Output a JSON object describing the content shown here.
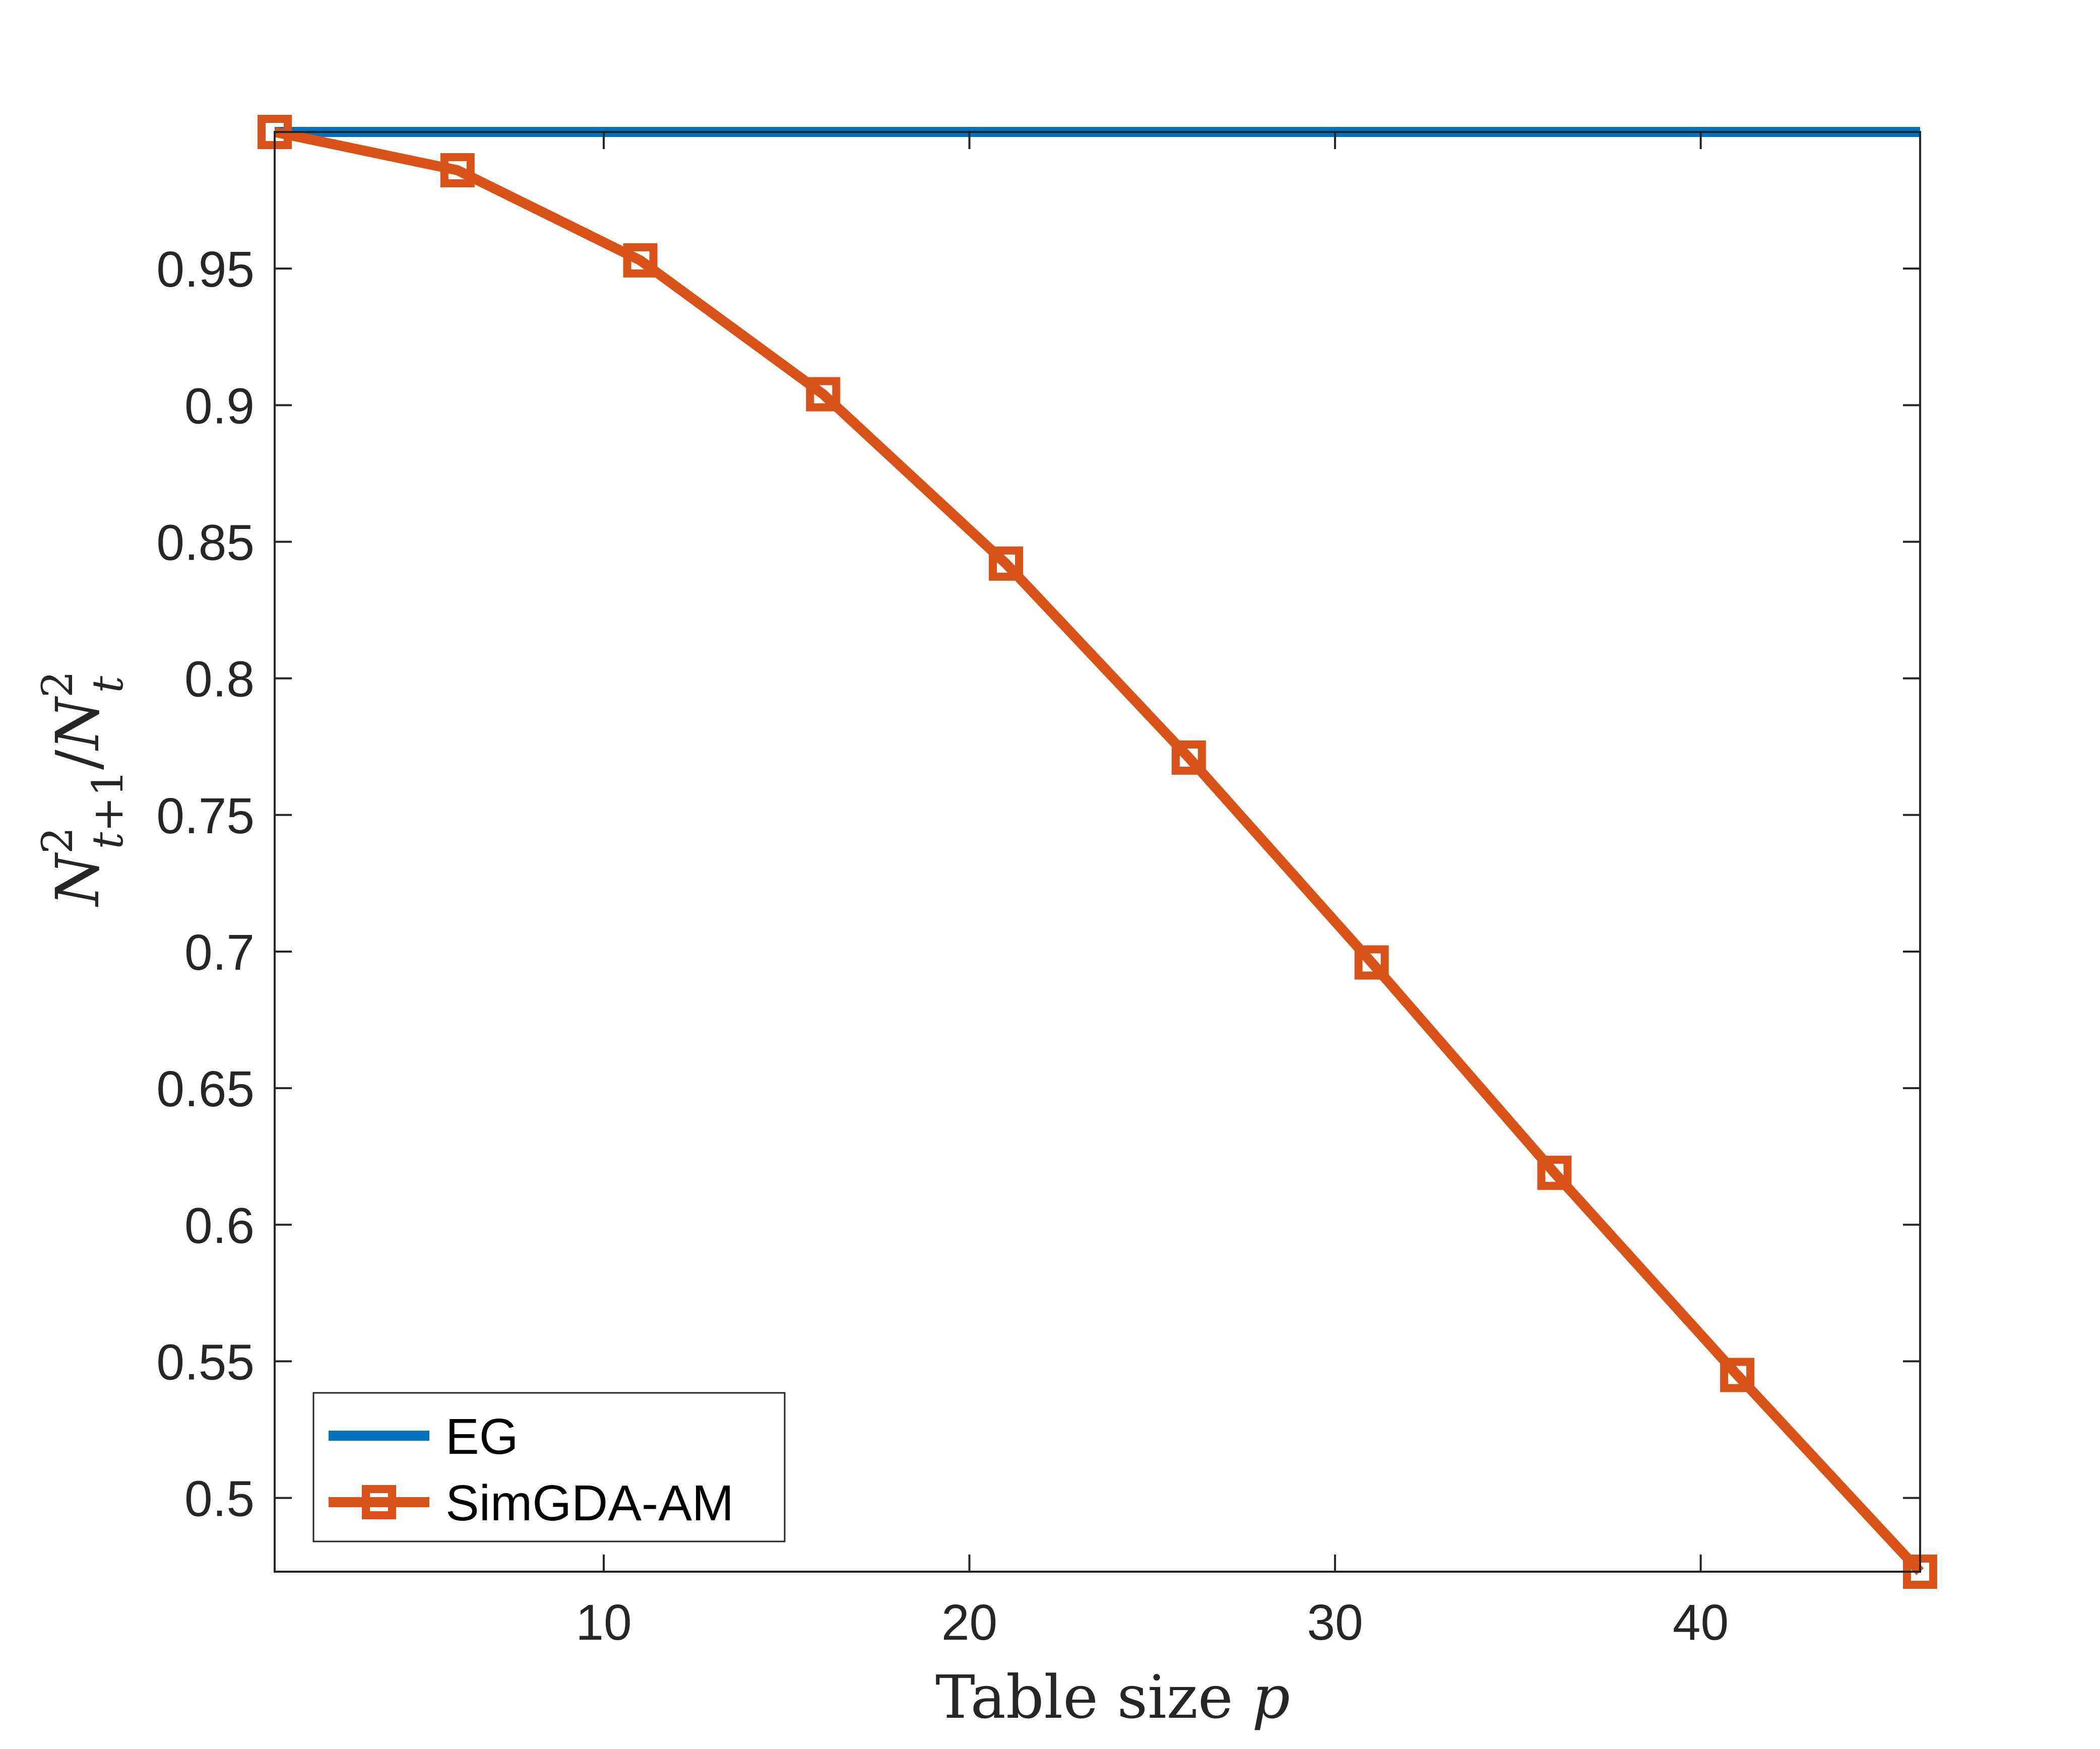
{
  "chart_data": {
    "type": "line",
    "xlabel": "Table size p",
    "xlabel_prefix": "Table size",
    "xlabel_var": "p",
    "ylabel": "N²_{t+1}/N²_t",
    "xlim": [
      1,
      46
    ],
    "ylim": [
      0.473,
      1.0
    ],
    "xticks": [
      10,
      20,
      30,
      40
    ],
    "yticks": [
      0.5,
      0.55,
      0.6,
      0.65,
      0.7,
      0.75,
      0.8,
      0.85,
      0.9,
      0.95
    ],
    "grid": false,
    "legend_position": "bottom-left",
    "series": [
      {
        "name": "EG",
        "color": "#0072BD",
        "marker": "none",
        "x": [
          1,
          46
        ],
        "y": [
          1.0,
          1.0
        ]
      },
      {
        "name": "SimGDA-AM",
        "color": "#D95319",
        "marker": "square",
        "x": [
          1,
          6,
          11,
          16,
          21,
          26,
          31,
          36,
          41,
          46
        ],
        "y": [
          1.0,
          0.986,
          0.953,
          0.904,
          0.842,
          0.771,
          0.696,
          0.619,
          0.545,
          0.473
        ]
      }
    ]
  }
}
